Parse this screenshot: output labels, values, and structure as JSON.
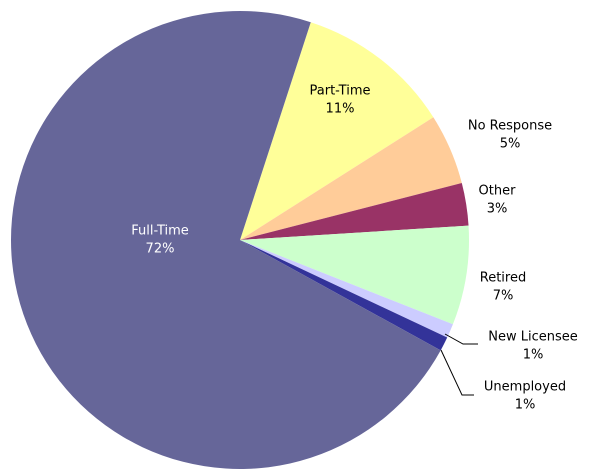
{
  "chart_data": {
    "type": "pie",
    "categories": [
      "Part-Time",
      "No Response",
      "Other",
      "Retired",
      "New Licensee",
      "Unemployed",
      "Full-Time"
    ],
    "values": [
      11,
      5,
      3,
      7,
      1,
      1,
      72
    ],
    "value_labels": [
      "11%",
      "5%",
      "3%",
      "7%",
      "1%",
      "1%",
      "72%"
    ],
    "colors": [
      "#ffff99",
      "#ffcc99",
      "#993366",
      "#ccffcc",
      "#ccccff",
      "#333399",
      "#666699"
    ],
    "start_angle": 18
  }
}
